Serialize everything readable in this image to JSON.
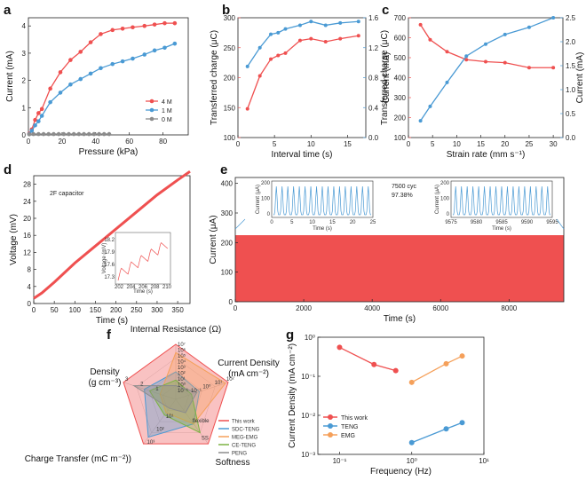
{
  "colors": {
    "red": "#EF5050",
    "blue": "#4A9AD4",
    "gray": "#8C8C8C",
    "orange": "#F5A05A",
    "green": "#7CB342",
    "purple": "#B58AC9"
  },
  "chart_data": [
    {
      "panel": "a",
      "type": "line",
      "xlabel": "Pressure (kPa)",
      "ylabel": "Current (mA)",
      "xlim": [
        0,
        95
      ],
      "ylim": [
        0,
        4.3
      ],
      "xticks": [
        0,
        20,
        40,
        60,
        80
      ],
      "yticks": [
        0,
        1,
        2,
        3,
        4
      ],
      "legend_position": "bottom-right",
      "series": [
        {
          "name": "4 M",
          "color": "#EF5050",
          "x": [
            0.5,
            2,
            4,
            6,
            8,
            13,
            19,
            25,
            31,
            37,
            43,
            50,
            56,
            62,
            69,
            75,
            81,
            87
          ],
          "y": [
            0.05,
            0.2,
            0.55,
            0.8,
            0.95,
            1.7,
            2.3,
            2.75,
            3.05,
            3.4,
            3.7,
            3.85,
            3.9,
            3.95,
            4.0,
            4.05,
            4.1,
            4.1
          ]
        },
        {
          "name": "1 M",
          "color": "#4A9AD4",
          "x": [
            0.5,
            2,
            4,
            6,
            8,
            13,
            19,
            25,
            31,
            37,
            43,
            50,
            56,
            62,
            69,
            75,
            81,
            87
          ],
          "y": [
            0.03,
            0.15,
            0.35,
            0.5,
            0.7,
            1.2,
            1.55,
            1.85,
            2.05,
            2.25,
            2.45,
            2.6,
            2.7,
            2.8,
            2.95,
            3.1,
            3.2,
            3.35
          ]
        },
        {
          "name": "0 M",
          "color": "#8C8C8C",
          "x": [
            0.5,
            3,
            6,
            9,
            12,
            15,
            18,
            21,
            24,
            27,
            30,
            33,
            36,
            39,
            42,
            45,
            48
          ],
          "y": [
            0.02,
            0.03,
            0.03,
            0.03,
            0.03,
            0.03,
            0.03,
            0.03,
            0.03,
            0.03,
            0.03,
            0.03,
            0.03,
            0.03,
            0.03,
            0.03,
            0.03
          ]
        }
      ]
    },
    {
      "panel": "b",
      "type": "line",
      "xlabel": "Interval time (s)",
      "ylabel": "Transferred charge (μC)",
      "ylabel_right": "Current (mA)",
      "xlim": [
        0,
        17.5
      ],
      "ylim": [
        100,
        300
      ],
      "ylim_right": [
        0,
        1.6
      ],
      "xticks": [
        0,
        5,
        10,
        15
      ],
      "yticks": [
        100,
        150,
        200,
        250,
        300
      ],
      "yticks_right": [
        0,
        0.4,
        0.8,
        1.2,
        1.6
      ],
      "series": [
        {
          "name": "",
          "axis": "left",
          "color": "#EF5050",
          "x": [
            1.3,
            3,
            4.5,
            5.5,
            6.5,
            8.5,
            10,
            12,
            14,
            16.5
          ],
          "y": [
            148,
            203,
            231,
            237,
            241,
            262,
            265,
            260,
            265,
            270
          ]
        },
        {
          "name": "",
          "axis": "right",
          "color": "#4A9AD4",
          "x": [
            1.3,
            3,
            4.5,
            5.5,
            6.5,
            8.5,
            10,
            12,
            14,
            16.5
          ],
          "y": [
            0.95,
            1.2,
            1.38,
            1.4,
            1.45,
            1.5,
            1.55,
            1.5,
            1.53,
            1.55
          ]
        }
      ]
    },
    {
      "panel": "c",
      "type": "line",
      "xlabel": "Strain rate (mm s⁻¹)",
      "ylabel": "Transferred charge (μC)",
      "ylabel_right": "Current (mA)",
      "xlim": [
        0,
        32
      ],
      "ylim": [
        100,
        700
      ],
      "ylim_right": [
        0,
        2.5
      ],
      "xticks": [
        0,
        5,
        10,
        15,
        20,
        25,
        30
      ],
      "yticks": [
        100,
        200,
        300,
        400,
        500,
        600,
        700
      ],
      "yticks_right": [
        0,
        0.5,
        1.0,
        1.5,
        2.0,
        2.5
      ],
      "series": [
        {
          "name": "",
          "axis": "left",
          "color": "#EF5050",
          "x": [
            2.5,
            4.5,
            8,
            12,
            16,
            20,
            25,
            30
          ],
          "y": [
            665,
            590,
            530,
            490,
            480,
            475,
            450,
            450
          ]
        },
        {
          "name": "",
          "axis": "right",
          "color": "#4A9AD4",
          "x": [
            2.5,
            4.5,
            8,
            12,
            16,
            20,
            25,
            30
          ],
          "y": [
            0.35,
            0.65,
            1.15,
            1.7,
            1.95,
            2.15,
            2.3,
            2.5
          ]
        }
      ]
    },
    {
      "panel": "d",
      "type": "line",
      "title": "2F capacitor",
      "xlabel": "Time (s)",
      "ylabel": "Voltage (mV)",
      "xlim": [
        0,
        380
      ],
      "ylim": [
        0,
        30
      ],
      "xticks": [
        0,
        50,
        100,
        150,
        200,
        250,
        300,
        350
      ],
      "yticks": [
        0,
        4,
        8,
        12,
        16,
        20,
        24,
        28
      ],
      "series": [
        {
          "name": "",
          "color": "#EF5050",
          "x": [
            0,
            20,
            50,
            100,
            150,
            200,
            250,
            300,
            350,
            380
          ],
          "y": [
            1.2,
            2.5,
            5,
            9.5,
            13.5,
            17.5,
            21.5,
            25.5,
            29,
            31
          ]
        }
      ],
      "inset": {
        "xlabel": "Time (s)",
        "ylabel": "Voltage (mV)",
        "xticks": [
          202,
          204,
          206,
          208,
          210
        ],
        "yticks": [
          17.3,
          17.6,
          17.9,
          18.2
        ]
      }
    },
    {
      "panel": "e",
      "type": "line",
      "xlabel": "Time (s)",
      "ylabel": "Current (μA)",
      "xlim": [
        0,
        9600
      ],
      "ylim": [
        0,
        420
      ],
      "xticks": [
        0,
        2000,
        4000,
        6000,
        8000
      ],
      "yticks": [
        0,
        100,
        200,
        300,
        400
      ],
      "annotation": [
        "7500 cyc",
        "97.38%"
      ],
      "series": [
        {
          "name": "",
          "color": "#EF5050",
          "x": [
            0,
            9600
          ],
          "y": [
            225,
            220
          ]
        }
      ],
      "inset_left": {
        "xlabel": "Time (s)",
        "ylabel": "Current (μA)",
        "xticks": [
          0,
          5,
          10,
          15,
          20,
          25
        ],
        "yticks": [
          0,
          100,
          200
        ]
      },
      "inset_right": {
        "xlabel": "Time (s)",
        "ylabel": "Current (μA)",
        "xticks": [
          9575,
          9580,
          9585,
          9590,
          9595
        ],
        "yticks": [
          0,
          100,
          200
        ]
      }
    },
    {
      "panel": "f",
      "type": "radar",
      "axes": [
        "Internal Resistance (Ω)",
        "Current Density (mA cm⁻²)",
        "Softness",
        "Charge Transfer (mC m⁻²)",
        "Density (g cm⁻³)"
      ],
      "axis_tick_labels": [
        "10⁷",
        "10⁶",
        "10⁵",
        "10⁴",
        "10³",
        "10²",
        "10¹",
        "10⁰",
        "10⁻¹",
        "10²",
        "10¹",
        "10⁰",
        "10⁻¹",
        "SS",
        "flexible",
        "10³",
        "10²",
        "10¹",
        "3",
        "2",
        "1"
      ],
      "series": [
        {
          "name": "This work",
          "color": "#EF5050",
          "values": [
            1.0,
            1.0,
            1.0,
            1.0,
            1.0
          ]
        },
        {
          "name": "SDC-TENG",
          "color": "#4A9AD4",
          "values": [
            0.5,
            0.45,
            0.55,
            0.85,
            0.6
          ]
        },
        {
          "name": "MEG-EMG",
          "color": "#F5A05A",
          "values": [
            0.85,
            0.95,
            0.55,
            0.3,
            0.3
          ]
        },
        {
          "name": "CE-TENG",
          "color": "#7CB342",
          "values": [
            0.35,
            0.3,
            0.75,
            0.35,
            0.5
          ]
        },
        {
          "name": "PENG",
          "color": "#8C8C8C",
          "values": [
            0.25,
            0.4,
            0.3,
            0.2,
            0.8
          ]
        }
      ]
    },
    {
      "panel": "g",
      "type": "line",
      "xlabel": "Frequency (Hz)",
      "ylabel": "Current Density (mA cm⁻²)",
      "x_scale": "log",
      "y_scale": "log",
      "xlim": [
        0.05,
        10
      ],
      "ylim": [
        0.001,
        1
      ],
      "xticks": [
        "10⁻¹",
        "10⁰",
        "10¹"
      ],
      "yticks": [
        "10⁻³",
        "10⁻²",
        "10⁻¹",
        "10⁰"
      ],
      "legend_position": "bottom-left",
      "series": [
        {
          "name": "This work",
          "color": "#EF5050",
          "x": [
            0.1,
            0.3,
            0.6
          ],
          "y": [
            0.55,
            0.2,
            0.14
          ]
        },
        {
          "name": "TENG",
          "color": "#4A9AD4",
          "x": [
            1,
            3,
            5
          ],
          "y": [
            0.002,
            0.0045,
            0.0065
          ]
        },
        {
          "name": "EMG",
          "color": "#F5A05A",
          "x": [
            1,
            3,
            5
          ],
          "y": [
            0.07,
            0.21,
            0.33
          ]
        }
      ]
    }
  ]
}
